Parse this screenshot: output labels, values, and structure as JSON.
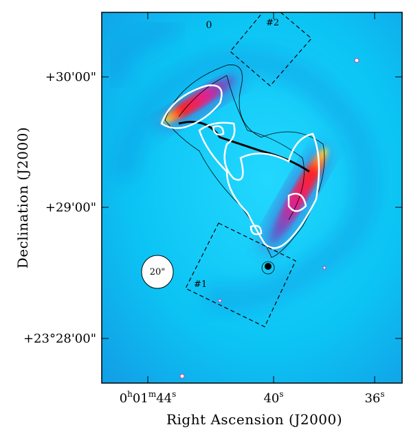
{
  "figure": {
    "x_axis": {
      "title": "Right Ascension (J2000)",
      "ticks": [
        [
          "0",
          "h",
          "01",
          "m",
          "44",
          "s"
        ],
        [
          "40",
          "s"
        ],
        [
          "36",
          "s"
        ]
      ]
    },
    "y_axis": {
      "title": "Declination (J2000)",
      "ticks": [
        "+30'00\"",
        "+29'00\"",
        "+23°28'00\""
      ]
    },
    "annotations": {
      "region_1": "#1",
      "region_2": "#2",
      "beam": "20\"",
      "marker": "0"
    }
  }
}
